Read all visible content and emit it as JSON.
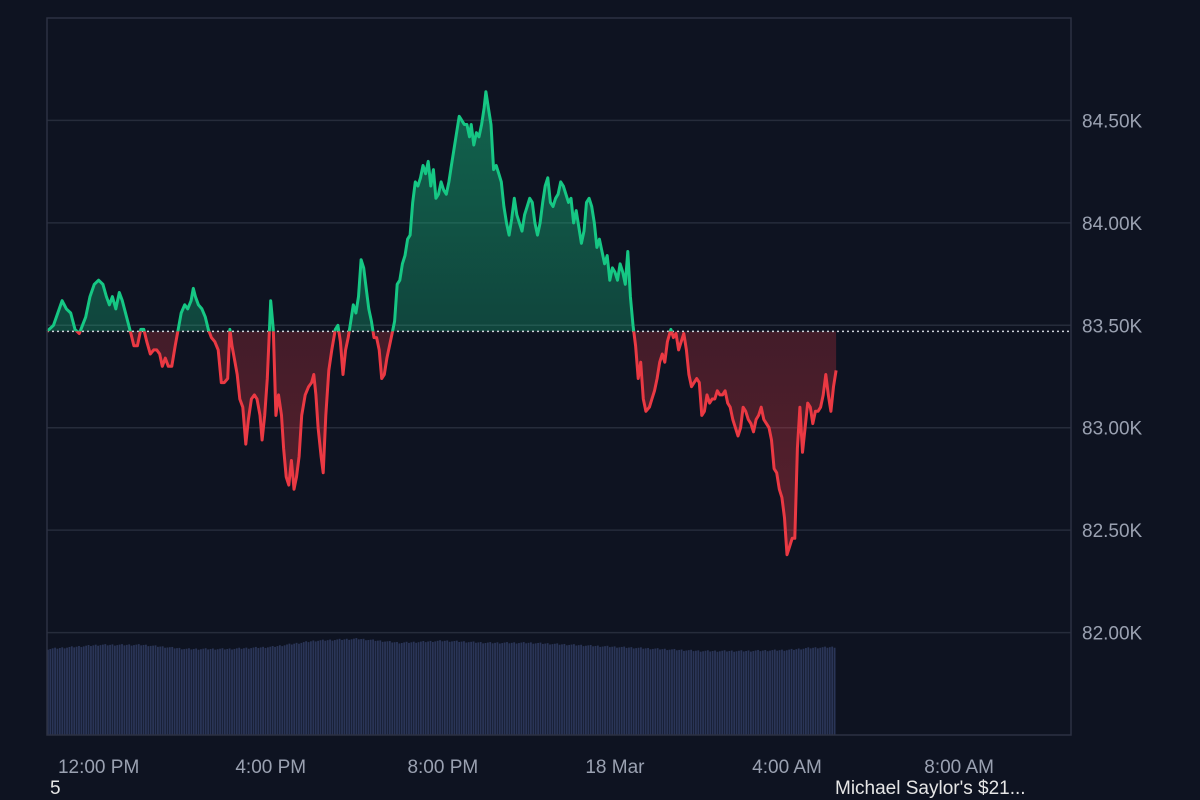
{
  "chart_data": {
    "type": "area",
    "baseline": 83470,
    "ylim": [
      81500,
      85000
    ],
    "y_ticks": [
      {
        "value": 82000,
        "label": "82.00K"
      },
      {
        "value": 82500,
        "label": "82.50K"
      },
      {
        "value": 83000,
        "label": "83.00K"
      },
      {
        "value": 83500,
        "label": "83.50K"
      },
      {
        "value": 84000,
        "label": "84.00K"
      },
      {
        "value": 84500,
        "label": "84.50K"
      }
    ],
    "x_ticks": [
      {
        "hour": 12,
        "label": "12:00 PM"
      },
      {
        "hour": 16,
        "label": "4:00 PM"
      },
      {
        "hour": 20,
        "label": "8:00 PM"
      },
      {
        "hour": 24,
        "label": "18 Mar"
      },
      {
        "hour": 28,
        "label": "4:00 AM"
      },
      {
        "hour": 32,
        "label": "8:00 AM"
      }
    ],
    "xlim": [
      10.8,
      34.6
    ],
    "up_color": "#16c784",
    "down_color": "#ea3943",
    "volume_color": "#2a3557",
    "grid": true,
    "price": [
      [
        10.8,
        83470
      ],
      [
        10.95,
        83500
      ],
      [
        11.05,
        83560
      ],
      [
        11.15,
        83620
      ],
      [
        11.25,
        83580
      ],
      [
        11.35,
        83560
      ],
      [
        11.45,
        83480
      ],
      [
        11.55,
        83460
      ],
      [
        11.7,
        83540
      ],
      [
        11.8,
        83640
      ],
      [
        11.9,
        83700
      ],
      [
        12.0,
        83720
      ],
      [
        12.1,
        83700
      ],
      [
        12.18,
        83640
      ],
      [
        12.25,
        83600
      ],
      [
        12.32,
        83640
      ],
      [
        12.4,
        83580
      ],
      [
        12.48,
        83660
      ],
      [
        12.55,
        83620
      ],
      [
        12.65,
        83540
      ],
      [
        12.75,
        83460
      ],
      [
        12.82,
        83400
      ],
      [
        12.9,
        83400
      ],
      [
        12.98,
        83480
      ],
      [
        13.05,
        83480
      ],
      [
        13.12,
        83420
      ],
      [
        13.2,
        83360
      ],
      [
        13.28,
        83380
      ],
      [
        13.35,
        83380
      ],
      [
        13.42,
        83360
      ],
      [
        13.48,
        83300
      ],
      [
        13.55,
        83340
      ],
      [
        13.62,
        83300
      ],
      [
        13.7,
        83300
      ],
      [
        13.78,
        83400
      ],
      [
        13.85,
        83480
      ],
      [
        13.92,
        83560
      ],
      [
        14.0,
        83600
      ],
      [
        14.07,
        83580
      ],
      [
        14.15,
        83620
      ],
      [
        14.2,
        83680
      ],
      [
        14.25,
        83640
      ],
      [
        14.32,
        83600
      ],
      [
        14.4,
        83580
      ],
      [
        14.48,
        83540
      ],
      [
        14.55,
        83480
      ],
      [
        14.62,
        83440
      ],
      [
        14.7,
        83420
      ],
      [
        14.78,
        83380
      ],
      [
        14.85,
        83220
      ],
      [
        14.92,
        83220
      ],
      [
        15.0,
        83240
      ],
      [
        15.05,
        83480
      ],
      [
        15.1,
        83400
      ],
      [
        15.17,
        83320
      ],
      [
        15.22,
        83260
      ],
      [
        15.28,
        83140
      ],
      [
        15.35,
        83100
      ],
      [
        15.42,
        82920
      ],
      [
        15.48,
        83040
      ],
      [
        15.55,
        83140
      ],
      [
        15.62,
        83160
      ],
      [
        15.68,
        83140
      ],
      [
        15.75,
        83060
      ],
      [
        15.8,
        82940
      ],
      [
        15.86,
        83060
      ],
      [
        15.92,
        83240
      ],
      [
        16.0,
        83620
      ],
      [
        16.06,
        83480
      ],
      [
        16.12,
        83060
      ],
      [
        16.18,
        83160
      ],
      [
        16.25,
        83060
      ],
      [
        16.3,
        82900
      ],
      [
        16.36,
        82760
      ],
      [
        16.42,
        82720
      ],
      [
        16.48,
        82840
      ],
      [
        16.54,
        82700
      ],
      [
        16.6,
        82760
      ],
      [
        16.66,
        82860
      ],
      [
        16.72,
        83060
      ],
      [
        16.8,
        83160
      ],
      [
        16.88,
        83200
      ],
      [
        16.95,
        83220
      ],
      [
        17.0,
        83260
      ],
      [
        17.05,
        83160
      ],
      [
        17.1,
        83000
      ],
      [
        17.17,
        82860
      ],
      [
        17.22,
        82780
      ],
      [
        17.28,
        83060
      ],
      [
        17.35,
        83280
      ],
      [
        17.42,
        83380
      ],
      [
        17.5,
        83480
      ],
      [
        17.56,
        83500
      ],
      [
        17.62,
        83420
      ],
      [
        17.68,
        83260
      ],
      [
        17.74,
        83380
      ],
      [
        17.8,
        83440
      ],
      [
        17.86,
        83520
      ],
      [
        17.92,
        83600
      ],
      [
        17.98,
        83560
      ],
      [
        18.04,
        83640
      ],
      [
        18.1,
        83820
      ],
      [
        18.16,
        83780
      ],
      [
        18.22,
        83680
      ],
      [
        18.28,
        83580
      ],
      [
        18.34,
        83520
      ],
      [
        18.4,
        83440
      ],
      [
        18.46,
        83440
      ],
      [
        18.52,
        83380
      ],
      [
        18.58,
        83240
      ],
      [
        18.64,
        83260
      ],
      [
        18.7,
        83340
      ],
      [
        18.76,
        83400
      ],
      [
        18.82,
        83460
      ],
      [
        18.88,
        83520
      ],
      [
        18.94,
        83700
      ],
      [
        19.0,
        83720
      ],
      [
        19.06,
        83800
      ],
      [
        19.12,
        83840
      ],
      [
        19.18,
        83920
      ],
      [
        19.24,
        83940
      ],
      [
        19.3,
        84100
      ],
      [
        19.36,
        84200
      ],
      [
        19.42,
        84180
      ],
      [
        19.48,
        84220
      ],
      [
        19.54,
        84280
      ],
      [
        19.6,
        84240
      ],
      [
        19.66,
        84300
      ],
      [
        19.72,
        84180
      ],
      [
        19.78,
        84260
      ],
      [
        19.84,
        84120
      ],
      [
        19.9,
        84140
      ],
      [
        19.96,
        84200
      ],
      [
        20.02,
        84160
      ],
      [
        20.08,
        84140
      ],
      [
        20.14,
        84200
      ],
      [
        20.2,
        84280
      ],
      [
        20.26,
        84360
      ],
      [
        20.32,
        84440
      ],
      [
        20.38,
        84520
      ],
      [
        20.44,
        84500
      ],
      [
        20.5,
        84480
      ],
      [
        20.56,
        84480
      ],
      [
        20.62,
        84420
      ],
      [
        20.66,
        84480
      ],
      [
        20.72,
        84380
      ],
      [
        20.78,
        84440
      ],
      [
        20.84,
        84420
      ],
      [
        20.9,
        84480
      ],
      [
        20.96,
        84560
      ],
      [
        21.0,
        84640
      ],
      [
        21.06,
        84560
      ],
      [
        21.12,
        84480
      ],
      [
        21.18,
        84260
      ],
      [
        21.24,
        84280
      ],
      [
        21.3,
        84240
      ],
      [
        21.36,
        84200
      ],
      [
        21.42,
        84080
      ],
      [
        21.48,
        84000
      ],
      [
        21.54,
        83940
      ],
      [
        21.6,
        84020
      ],
      [
        21.66,
        84120
      ],
      [
        21.72,
        84040
      ],
      [
        21.78,
        84000
      ],
      [
        21.84,
        83960
      ],
      [
        21.9,
        84040
      ],
      [
        21.96,
        84080
      ],
      [
        22.02,
        84120
      ],
      [
        22.08,
        84100
      ],
      [
        22.14,
        84000
      ],
      [
        22.2,
        83940
      ],
      [
        22.26,
        84000
      ],
      [
        22.32,
        84100
      ],
      [
        22.38,
        84180
      ],
      [
        22.44,
        84220
      ],
      [
        22.5,
        84100
      ],
      [
        22.56,
        84080
      ],
      [
        22.62,
        84120
      ],
      [
        22.68,
        84140
      ],
      [
        22.74,
        84200
      ],
      [
        22.8,
        84180
      ],
      [
        22.86,
        84140
      ],
      [
        22.92,
        84100
      ],
      [
        22.98,
        84120
      ],
      [
        23.04,
        84000
      ],
      [
        23.1,
        84060
      ],
      [
        23.16,
        83980
      ],
      [
        23.22,
        83900
      ],
      [
        23.28,
        83960
      ],
      [
        23.34,
        84100
      ],
      [
        23.4,
        84120
      ],
      [
        23.46,
        84080
      ],
      [
        23.52,
        84000
      ],
      [
        23.58,
        83880
      ],
      [
        23.64,
        83920
      ],
      [
        23.7,
        83860
      ],
      [
        23.76,
        83800
      ],
      [
        23.82,
        83840
      ],
      [
        23.88,
        83720
      ],
      [
        23.94,
        83780
      ],
      [
        24.0,
        83760
      ],
      [
        24.06,
        83720
      ],
      [
        24.12,
        83800
      ],
      [
        24.18,
        83760
      ],
      [
        24.24,
        83700
      ],
      [
        24.3,
        83860
      ],
      [
        24.36,
        83640
      ],
      [
        24.42,
        83500
      ],
      [
        24.48,
        83400
      ],
      [
        24.54,
        83240
      ],
      [
        24.6,
        83320
      ],
      [
        24.66,
        83140
      ],
      [
        24.72,
        83080
      ],
      [
        24.8,
        83100
      ],
      [
        24.86,
        83140
      ],
      [
        24.92,
        83180
      ],
      [
        24.98,
        83240
      ],
      [
        25.04,
        83320
      ],
      [
        25.1,
        83360
      ],
      [
        25.16,
        83320
      ],
      [
        25.22,
        83420
      ],
      [
        25.3,
        83480
      ],
      [
        25.36,
        83440
      ],
      [
        25.42,
        83460
      ],
      [
        25.48,
        83380
      ],
      [
        25.54,
        83420
      ],
      [
        25.6,
        83460
      ],
      [
        25.66,
        83380
      ],
      [
        25.72,
        83260
      ],
      [
        25.78,
        83200
      ],
      [
        25.84,
        83220
      ],
      [
        25.9,
        83240
      ],
      [
        25.96,
        83220
      ],
      [
        26.02,
        83060
      ],
      [
        26.08,
        83080
      ],
      [
        26.14,
        83160
      ],
      [
        26.2,
        83120
      ],
      [
        26.26,
        83140
      ],
      [
        26.32,
        83140
      ],
      [
        26.38,
        83180
      ],
      [
        26.44,
        83160
      ],
      [
        26.5,
        83160
      ],
      [
        26.56,
        83180
      ],
      [
        26.62,
        83120
      ],
      [
        26.68,
        83100
      ],
      [
        26.74,
        83040
      ],
      [
        26.8,
        83000
      ],
      [
        26.86,
        82960
      ],
      [
        26.92,
        83000
      ],
      [
        26.98,
        83100
      ],
      [
        27.04,
        83080
      ],
      [
        27.1,
        83040
      ],
      [
        27.16,
        83020
      ],
      [
        27.22,
        82980
      ],
      [
        27.28,
        83040
      ],
      [
        27.34,
        83060
      ],
      [
        27.4,
        83100
      ],
      [
        27.46,
        83040
      ],
      [
        27.52,
        83020
      ],
      [
        27.58,
        83000
      ],
      [
        27.64,
        82940
      ],
      [
        27.7,
        82800
      ],
      [
        27.76,
        82780
      ],
      [
        27.82,
        82700
      ],
      [
        27.88,
        82660
      ],
      [
        27.94,
        82560
      ],
      [
        28.0,
        82380
      ],
      [
        28.06,
        82420
      ],
      [
        28.12,
        82460
      ],
      [
        28.18,
        82460
      ],
      [
        28.24,
        82900
      ],
      [
        28.3,
        83100
      ],
      [
        28.36,
        82880
      ],
      [
        28.42,
        83000
      ],
      [
        28.48,
        83120
      ],
      [
        28.54,
        83100
      ],
      [
        28.6,
        83020
      ],
      [
        28.66,
        83080
      ],
      [
        28.72,
        83080
      ],
      [
        28.78,
        83100
      ],
      [
        28.84,
        83160
      ],
      [
        28.9,
        83260
      ],
      [
        28.96,
        83160
      ],
      [
        29.02,
        83080
      ],
      [
        29.08,
        83200
      ],
      [
        29.14,
        83280
      ]
    ],
    "volume": [
      [
        10.8,
        81920
      ],
      [
        12.0,
        81940
      ],
      [
        13.0,
        81940
      ],
      [
        14.0,
        81920
      ],
      [
        15.0,
        81920
      ],
      [
        16.0,
        81930
      ],
      [
        17.0,
        81960
      ],
      [
        18.0,
        81970
      ],
      [
        19.0,
        81950
      ],
      [
        20.0,
        81960
      ],
      [
        21.0,
        81950
      ],
      [
        22.0,
        81950
      ],
      [
        23.0,
        81940
      ],
      [
        24.0,
        81930
      ],
      [
        25.0,
        81920
      ],
      [
        26.0,
        81910
      ],
      [
        27.0,
        81910
      ],
      [
        28.0,
        81915
      ],
      [
        28.5,
        81925
      ],
      [
        29.14,
        81930
      ]
    ]
  },
  "footer": {
    "left_text": "5",
    "right_text": "Michael Saylor's $21..."
  }
}
